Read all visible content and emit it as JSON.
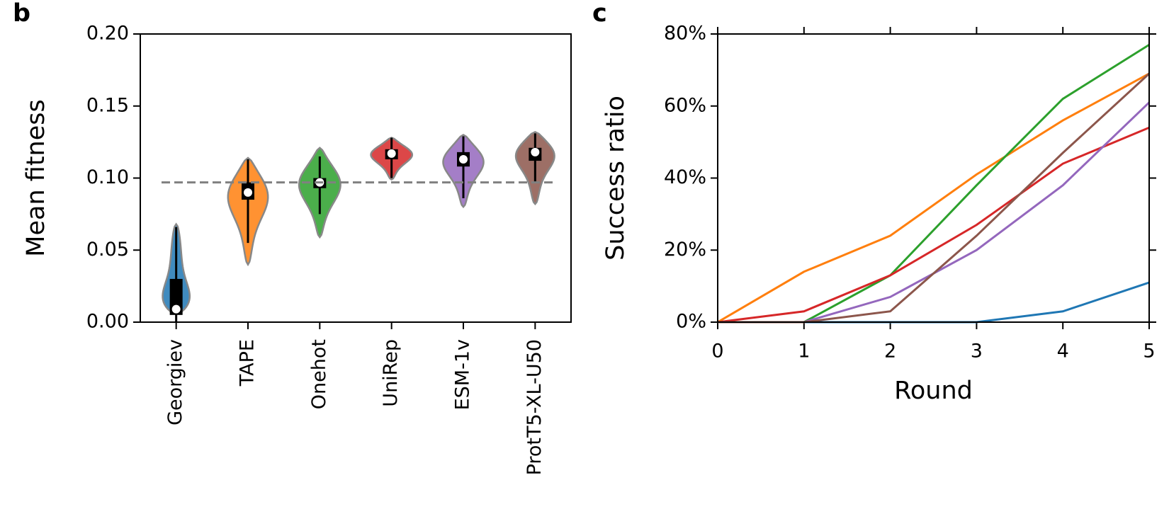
{
  "chart_data": [
    {
      "type": "violin",
      "panel": "b",
      "ylabel": "Mean fitness",
      "categories": [
        "Georgiev",
        "TAPE",
        "Onehot",
        "UniRep",
        "ESM-1v",
        "ProtT5-XL-U50"
      ],
      "colors": [
        "#1f77b4",
        "#ff7f0e",
        "#2ca02c",
        "#d62728",
        "#9467bd",
        "#8c564b"
      ],
      "median": [
        0.009,
        0.09,
        0.097,
        0.117,
        0.113,
        0.118
      ],
      "q1": [
        0.005,
        0.085,
        0.093,
        0.113,
        0.108,
        0.112
      ],
      "q3": [
        0.03,
        0.097,
        0.1,
        0.12,
        0.118,
        0.121
      ],
      "whisker_low": [
        0.0,
        0.055,
        0.075,
        0.1,
        0.086,
        0.097
      ],
      "whisker_high": [
        0.066,
        0.113,
        0.115,
        0.128,
        0.129,
        0.131
      ],
      "min": [
        0.006,
        0.04,
        0.059,
        0.099,
        0.08,
        0.082
      ],
      "max": [
        0.068,
        0.114,
        0.121,
        0.128,
        0.13,
        0.132
      ],
      "reference_line": 0.097,
      "ylim": [
        0,
        0.2
      ],
      "yticks": [
        {
          "value": 0,
          "label": "0.00"
        },
        {
          "value": 0.05,
          "label": "0.05"
        },
        {
          "value": 0.1,
          "label": "0.10"
        },
        {
          "value": 0.15,
          "label": "0.15"
        },
        {
          "value": 0.2,
          "label": "0.20"
        }
      ]
    },
    {
      "type": "line",
      "panel": "c",
      "xlabel": "Round",
      "ylabel": "Success ratio",
      "x": [
        0,
        1,
        2,
        3,
        4,
        5
      ],
      "series": [
        {
          "color": "#1f77b4",
          "values": [
            0,
            0,
            0,
            0,
            3,
            11
          ]
        },
        {
          "color": "#ff7f0e",
          "values": [
            0,
            14,
            24,
            41,
            56,
            69
          ]
        },
        {
          "color": "#2ca02c",
          "values": [
            0,
            0,
            13,
            38,
            62,
            77
          ]
        },
        {
          "color": "#d62728",
          "values": [
            0,
            3,
            13,
            27,
            44,
            54
          ]
        },
        {
          "color": "#9467bd",
          "values": [
            0,
            0,
            7,
            20,
            38,
            61
          ]
        },
        {
          "color": "#8c564b",
          "values": [
            0,
            0,
            3,
            24,
            47,
            69
          ]
        }
      ],
      "xlim": [
        0,
        5
      ],
      "xticks": [
        0,
        1,
        2,
        3,
        4,
        5
      ],
      "ylim": [
        0,
        80
      ],
      "yticks": [
        {
          "value": 0,
          "label": "0%"
        },
        {
          "value": 20,
          "label": "20%"
        },
        {
          "value": 40,
          "label": "40%"
        },
        {
          "value": 60,
          "label": "60%"
        },
        {
          "value": 80,
          "label": "80%"
        }
      ]
    }
  ]
}
